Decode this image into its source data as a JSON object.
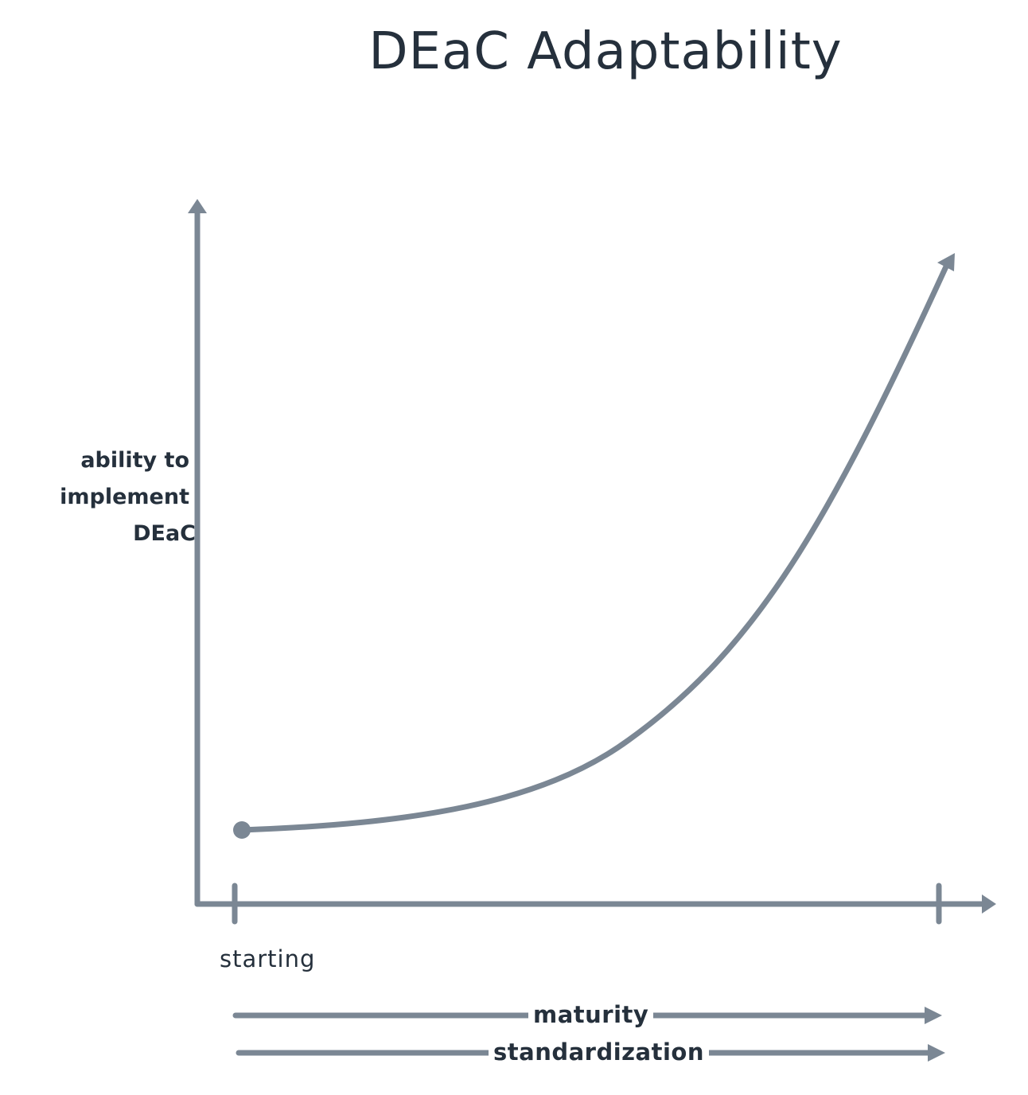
{
  "title": "DEaC Adaptability",
  "y_axis": {
    "label_lines": [
      "ability to",
      "implement",
      "DEaC"
    ]
  },
  "x_axis": {
    "start_label": "starting"
  },
  "arrows": [
    {
      "label": "maturity"
    },
    {
      "label": "standardization"
    }
  ],
  "colors": {
    "line": "#7b8794",
    "text": "#25303c",
    "background": "#ffffff"
  }
}
